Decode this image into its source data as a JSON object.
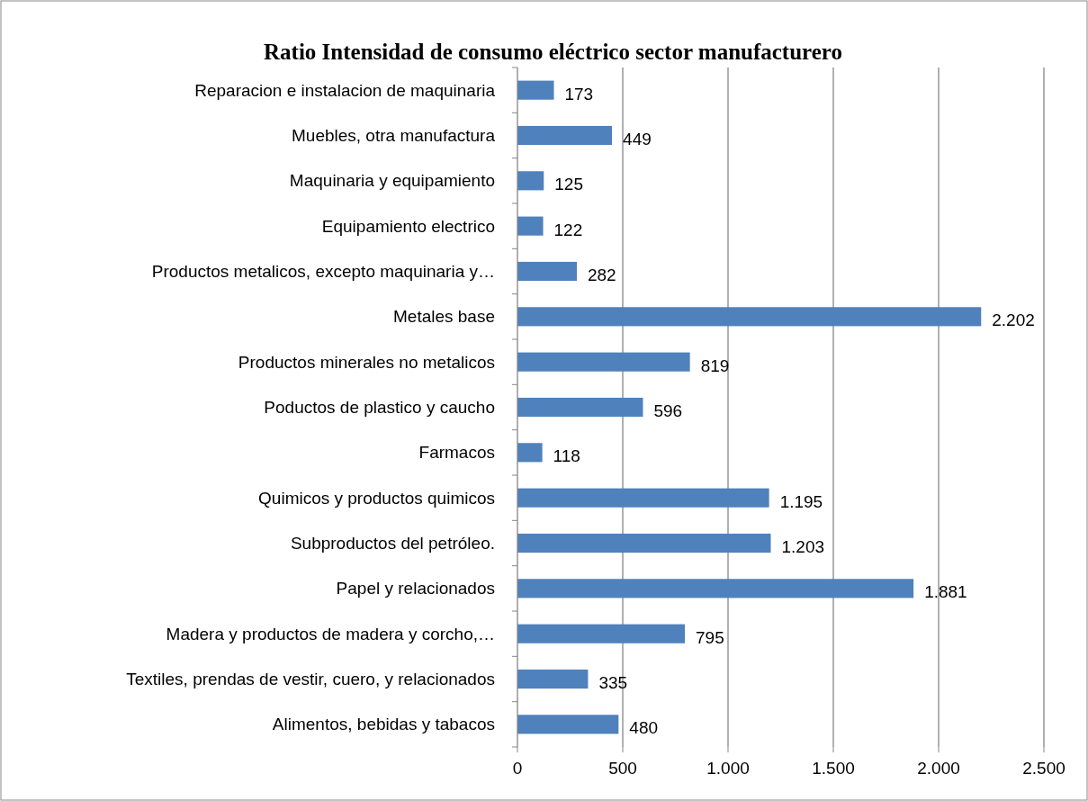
{
  "chart_data": {
    "type": "bar",
    "orientation": "horizontal",
    "title": "Ratio Intensidad de consumo eléctrico sector manufacturero",
    "categories": [
      "Reparacion e instalacion de maquinaria",
      "Muebles, otra manufactura",
      "Maquinaria y equipamiento",
      "Equipamiento electrico",
      "Productos metalicos, excepto maquinaria y…",
      "Metales base",
      "Productos minerales no metalicos",
      "Poductos de plastico y caucho",
      "Farmacos",
      "Quimicos y productos quimicos",
      "Subproductos del petróleo.",
      "Papel y relacionados",
      "Madera y productos de madera y corcho,…",
      "Textiles, prendas de vestir, cuero, y relacionados",
      "Alimentos, bebidas y tabacos"
    ],
    "values": [
      173,
      449,
      125,
      122,
      282,
      2202,
      819,
      596,
      118,
      1195,
      1203,
      1881,
      795,
      335,
      480
    ],
    "value_labels": [
      "173",
      "449",
      "125",
      "122",
      "282",
      "2.202",
      "819",
      "596",
      "118",
      "1.195",
      "1.203",
      "1.881",
      "795",
      "335",
      "480"
    ],
    "color": "#4f81bd",
    "xlim": [
      0,
      2500
    ],
    "xticks": [
      0,
      500,
      {
        "value": 1000,
        "label": "1.000"
      },
      {
        "value": 1500,
        "label": "1.500"
      },
      {
        "value": 2000,
        "label": "2.000"
      },
      {
        "value": 2500,
        "label": "2.500"
      }
    ],
    "grid": "x"
  }
}
